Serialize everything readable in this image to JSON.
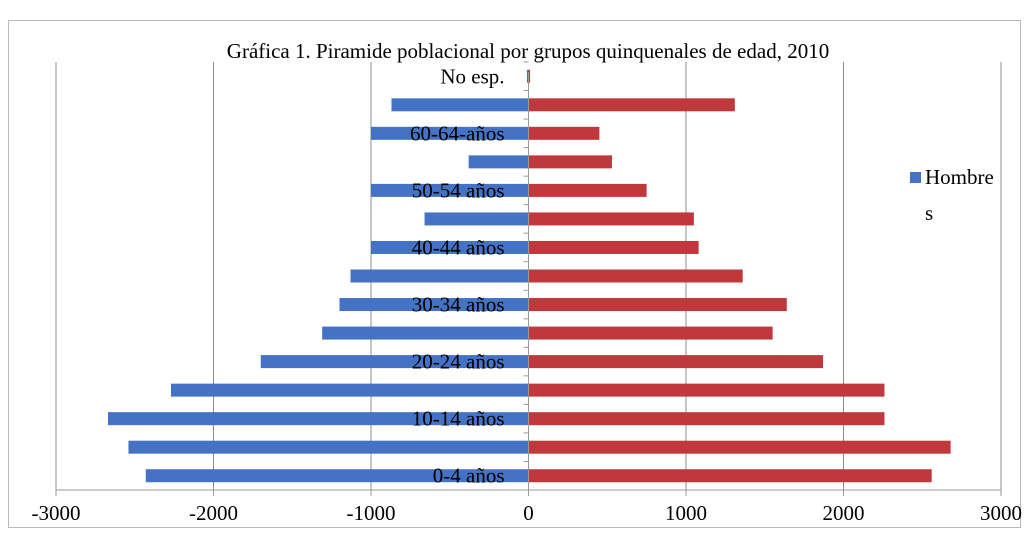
{
  "chart_data": {
    "type": "bar",
    "orientation": "horizontal",
    "title": "Gráfica 1. Piramide poblacional por grupos quinquenales de edad, 2010",
    "categories": [
      "0-4 años",
      "",
      "10-14 años",
      "",
      "20-24 años",
      "",
      "30-34 años",
      "",
      "40-44 años",
      "",
      "50-54 años",
      "",
      "60-64-años",
      "",
      "No esp."
    ],
    "series": [
      {
        "name": "Hombres",
        "color": "#4472c4",
        "values": [
          -2430,
          -2540,
          -2670,
          -2270,
          -1700,
          -1310,
          -1200,
          -1130,
          -1000,
          -660,
          -1000,
          -380,
          -1000,
          -870,
          -10
        ]
      },
      {
        "name": "",
        "color": "#c0373c",
        "values": [
          2560,
          2680,
          2260,
          2260,
          1870,
          1550,
          1640,
          1360,
          1080,
          1050,
          750,
          530,
          450,
          1310,
          10
        ]
      }
    ],
    "xlim": [
      -3000,
      3000
    ],
    "xticks": [
      "-3000",
      "-2000",
      "-1000",
      "0",
      "1000",
      "2000",
      "3000"
    ],
    "xlabel": "",
    "ylabel": "",
    "grid": "vertical",
    "legend_position": "right",
    "legend": [
      {
        "label": "Hombre",
        "label_line2": "s",
        "icon": "square-marker"
      }
    ]
  }
}
